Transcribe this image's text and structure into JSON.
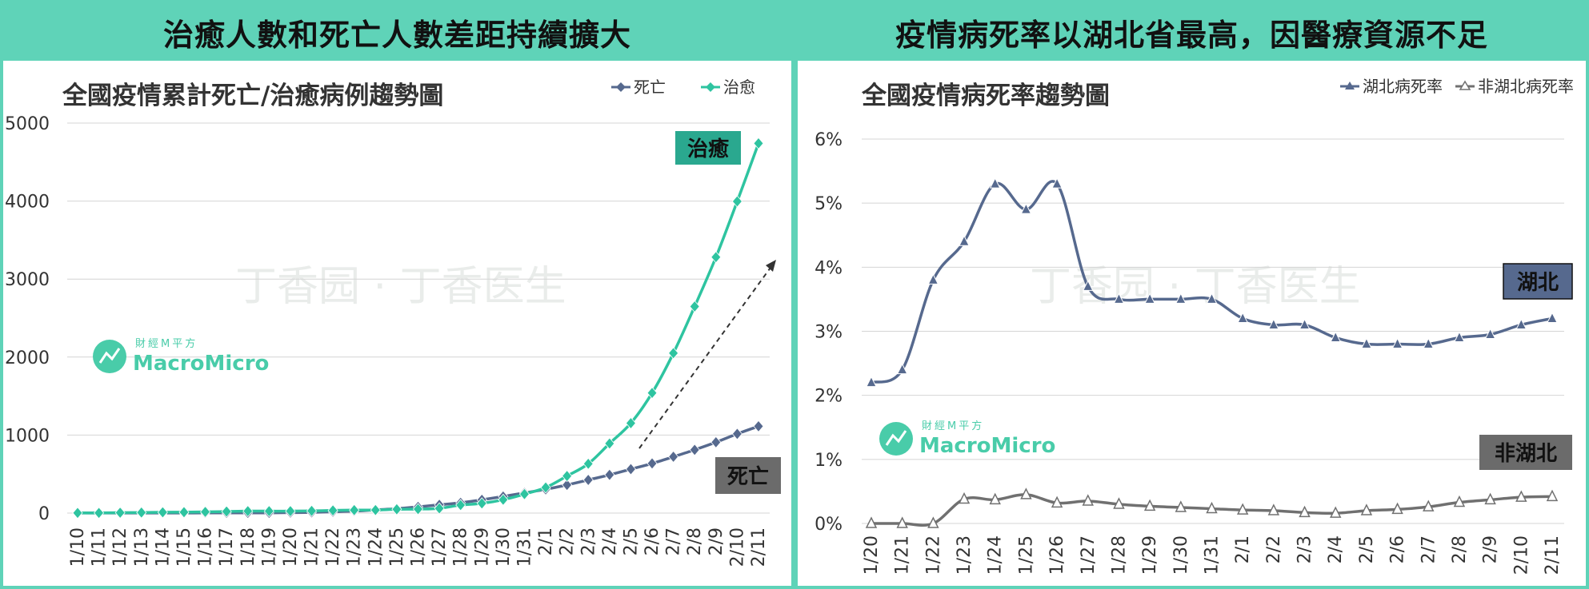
{
  "left": {
    "header": "治癒人數和死亡人數差距持續擴大",
    "title": "全國疫情累計死亡/治癒病例趨勢圖",
    "legend": [
      "死亡",
      "治愈"
    ],
    "labels": {
      "cure": "治癒",
      "death": "死亡"
    },
    "watermark": {
      "brand": "MacroMicro",
      "sub": "財經M平方",
      "ghost": "丁香园 · 丁香医生"
    }
  },
  "right": {
    "header": "疫情病死率以湖北省最高，因醫療資源不足",
    "title": "全國疫情病死率趨勢圖",
    "legend": [
      "湖北病死率",
      "非湖北病死率"
    ],
    "labels": {
      "hubei": "湖北",
      "nonhubei": "非湖北"
    },
    "watermark": {
      "brand": "MacroMicro",
      "sub": "財經M平方",
      "ghost": "丁香园 · 丁香医生"
    }
  },
  "colors": {
    "accent": "#5fd3b8",
    "teal": "#2ec4a0",
    "navy": "#56698e",
    "gray": "#707070",
    "darkgray": "#5a5a5a"
  },
  "chart_data": [
    {
      "type": "line",
      "title": "全國疫情累計死亡/治癒病例趨勢圖",
      "x": [
        "1/10",
        "1/11",
        "1/12",
        "1/13",
        "1/14",
        "1/15",
        "1/16",
        "1/17",
        "1/18",
        "1/19",
        "1/20",
        "1/21",
        "1/22",
        "1/23",
        "1/24",
        "1/25",
        "1/26",
        "1/27",
        "1/28",
        "1/29",
        "1/30",
        "1/31",
        "2/1",
        "2/2",
        "2/3",
        "2/4",
        "2/5",
        "2/6",
        "2/7",
        "2/8",
        "2/9",
        "2/10",
        "2/11"
      ],
      "series": [
        {
          "name": "死亡",
          "color": "#56698e",
          "marker": "diamond",
          "values": [
            1,
            1,
            1,
            1,
            1,
            1,
            2,
            2,
            3,
            3,
            6,
            9,
            17,
            25,
            41,
            56,
            80,
            106,
            132,
            170,
            213,
            259,
            304,
            361,
            425,
            490,
            563,
            636,
            722,
            811,
            908,
            1016,
            1113
          ]
        },
        {
          "name": "治愈",
          "color": "#2ec4a0",
          "marker": "diamond",
          "values": [
            2,
            2,
            5,
            7,
            10,
            12,
            15,
            20,
            25,
            25,
            25,
            28,
            34,
            38,
            39,
            49,
            51,
            60,
            103,
            124,
            171,
            243,
            328,
            475,
            632,
            892,
            1153,
            1540,
            2050,
            2649,
            3281,
            3996,
            4740
          ]
        }
      ],
      "ylim": [
        0,
        5000
      ],
      "yticks": [
        0,
        1000,
        2000,
        3000,
        4000,
        5000
      ],
      "grid": true,
      "legend": "top-right"
    },
    {
      "type": "line",
      "title": "全國疫情病死率趨勢圖",
      "x": [
        "1/20",
        "1/21",
        "1/22",
        "1/23",
        "1/24",
        "1/25",
        "1/26",
        "1/27",
        "1/28",
        "1/29",
        "1/30",
        "1/31",
        "2/1",
        "2/2",
        "2/3",
        "2/4",
        "2/5",
        "2/6",
        "2/7",
        "2/8",
        "2/9",
        "2/10",
        "2/11"
      ],
      "series": [
        {
          "name": "湖北病死率",
          "color": "#56698e",
          "marker": "triangle",
          "values": [
            2.2,
            2.4,
            3.8,
            4.4,
            5.3,
            4.9,
            5.3,
            3.7,
            3.5,
            3.5,
            3.5,
            3.5,
            3.2,
            3.1,
            3.1,
            2.9,
            2.8,
            2.8,
            2.8,
            2.9,
            2.95,
            3.1,
            3.2
          ]
        },
        {
          "name": "非湖北病死率",
          "color": "#707070",
          "marker": "triangle-open",
          "values": [
            0.0,
            0.0,
            0.0,
            0.38,
            0.37,
            0.45,
            0.32,
            0.35,
            0.3,
            0.27,
            0.25,
            0.23,
            0.21,
            0.2,
            0.17,
            0.16,
            0.2,
            0.22,
            0.26,
            0.33,
            0.37,
            0.41,
            0.42
          ]
        }
      ],
      "ylim": [
        0,
        6
      ],
      "yticks": [
        "0%",
        "1%",
        "2%",
        "3%",
        "4%",
        "5%",
        "6%"
      ],
      "grid": true,
      "legend": "top-right"
    }
  ]
}
